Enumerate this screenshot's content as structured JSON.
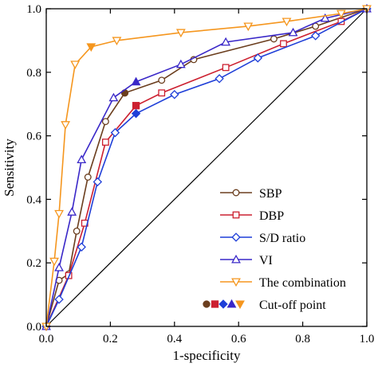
{
  "chart_data": {
    "type": "line",
    "title": "",
    "xlabel": "1-specificity",
    "ylabel": "Sensitivity",
    "xlim": [
      0,
      1
    ],
    "ylim": [
      0,
      1
    ],
    "xticks": [
      "0.0",
      "0.2",
      "0.4",
      "0.6",
      "0.8",
      "1.0"
    ],
    "yticks": [
      "0.0",
      "0.2",
      "0.4",
      "0.6",
      "0.8",
      "1.0"
    ],
    "grid": false,
    "legend_position": "bottom-right",
    "reference_line": {
      "x": [
        0,
        1
      ],
      "y": [
        0,
        1
      ]
    },
    "series": [
      {
        "name": "SBP",
        "color": "#6b3e1e",
        "marker": "circle",
        "x": [
          0,
          0.04,
          0.07,
          0.095,
          0.13,
          0.185,
          0.245,
          0.36,
          0.46,
          0.71,
          0.84,
          1.0
        ],
        "y": [
          0,
          0.145,
          0.165,
          0.3,
          0.47,
          0.645,
          0.735,
          0.775,
          0.84,
          0.905,
          0.945,
          1.0
        ],
        "cutoff": {
          "x": 0.245,
          "y": 0.735
        }
      },
      {
        "name": "DBP",
        "color": "#cc2030",
        "marker": "square",
        "x": [
          0,
          0.07,
          0.12,
          0.185,
          0.28,
          0.36,
          0.56,
          0.74,
          0.92,
          1.0
        ],
        "y": [
          0,
          0.16,
          0.325,
          0.58,
          0.695,
          0.735,
          0.815,
          0.89,
          0.96,
          1.0
        ],
        "cutoff": {
          "x": 0.28,
          "y": 0.695
        }
      },
      {
        "name": "S/D ratio",
        "color": "#1f3fd8",
        "marker": "diamond",
        "x": [
          0,
          0.04,
          0.11,
          0.16,
          0.215,
          0.28,
          0.4,
          0.54,
          0.66,
          0.84,
          1.0
        ],
        "y": [
          0,
          0.085,
          0.25,
          0.455,
          0.61,
          0.67,
          0.73,
          0.78,
          0.845,
          0.915,
          1.0
        ],
        "cutoff": {
          "x": 0.28,
          "y": 0.67
        }
      },
      {
        "name": "VI",
        "color": "#3a28c8",
        "marker": "triangle-up",
        "x": [
          0,
          0.04,
          0.08,
          0.11,
          0.21,
          0.28,
          0.42,
          0.56,
          0.77,
          0.87,
          1.0
        ],
        "y": [
          0,
          0.185,
          0.36,
          0.525,
          0.72,
          0.77,
          0.825,
          0.895,
          0.925,
          0.97,
          1.0
        ],
        "cutoff": {
          "x": 0.28,
          "y": 0.77
        }
      },
      {
        "name": "The combination",
        "color": "#f5961e",
        "marker": "triangle-down",
        "x": [
          0,
          0.025,
          0.04,
          0.06,
          0.09,
          0.14,
          0.22,
          0.42,
          0.63,
          0.75,
          0.92,
          1.0
        ],
        "y": [
          0,
          0.205,
          0.355,
          0.635,
          0.825,
          0.88,
          0.9,
          0.925,
          0.945,
          0.96,
          0.985,
          1.0
        ],
        "cutoff": {
          "x": 0.14,
          "y": 0.88
        }
      }
    ],
    "cutoff_legend_label": "Cut-off point"
  }
}
